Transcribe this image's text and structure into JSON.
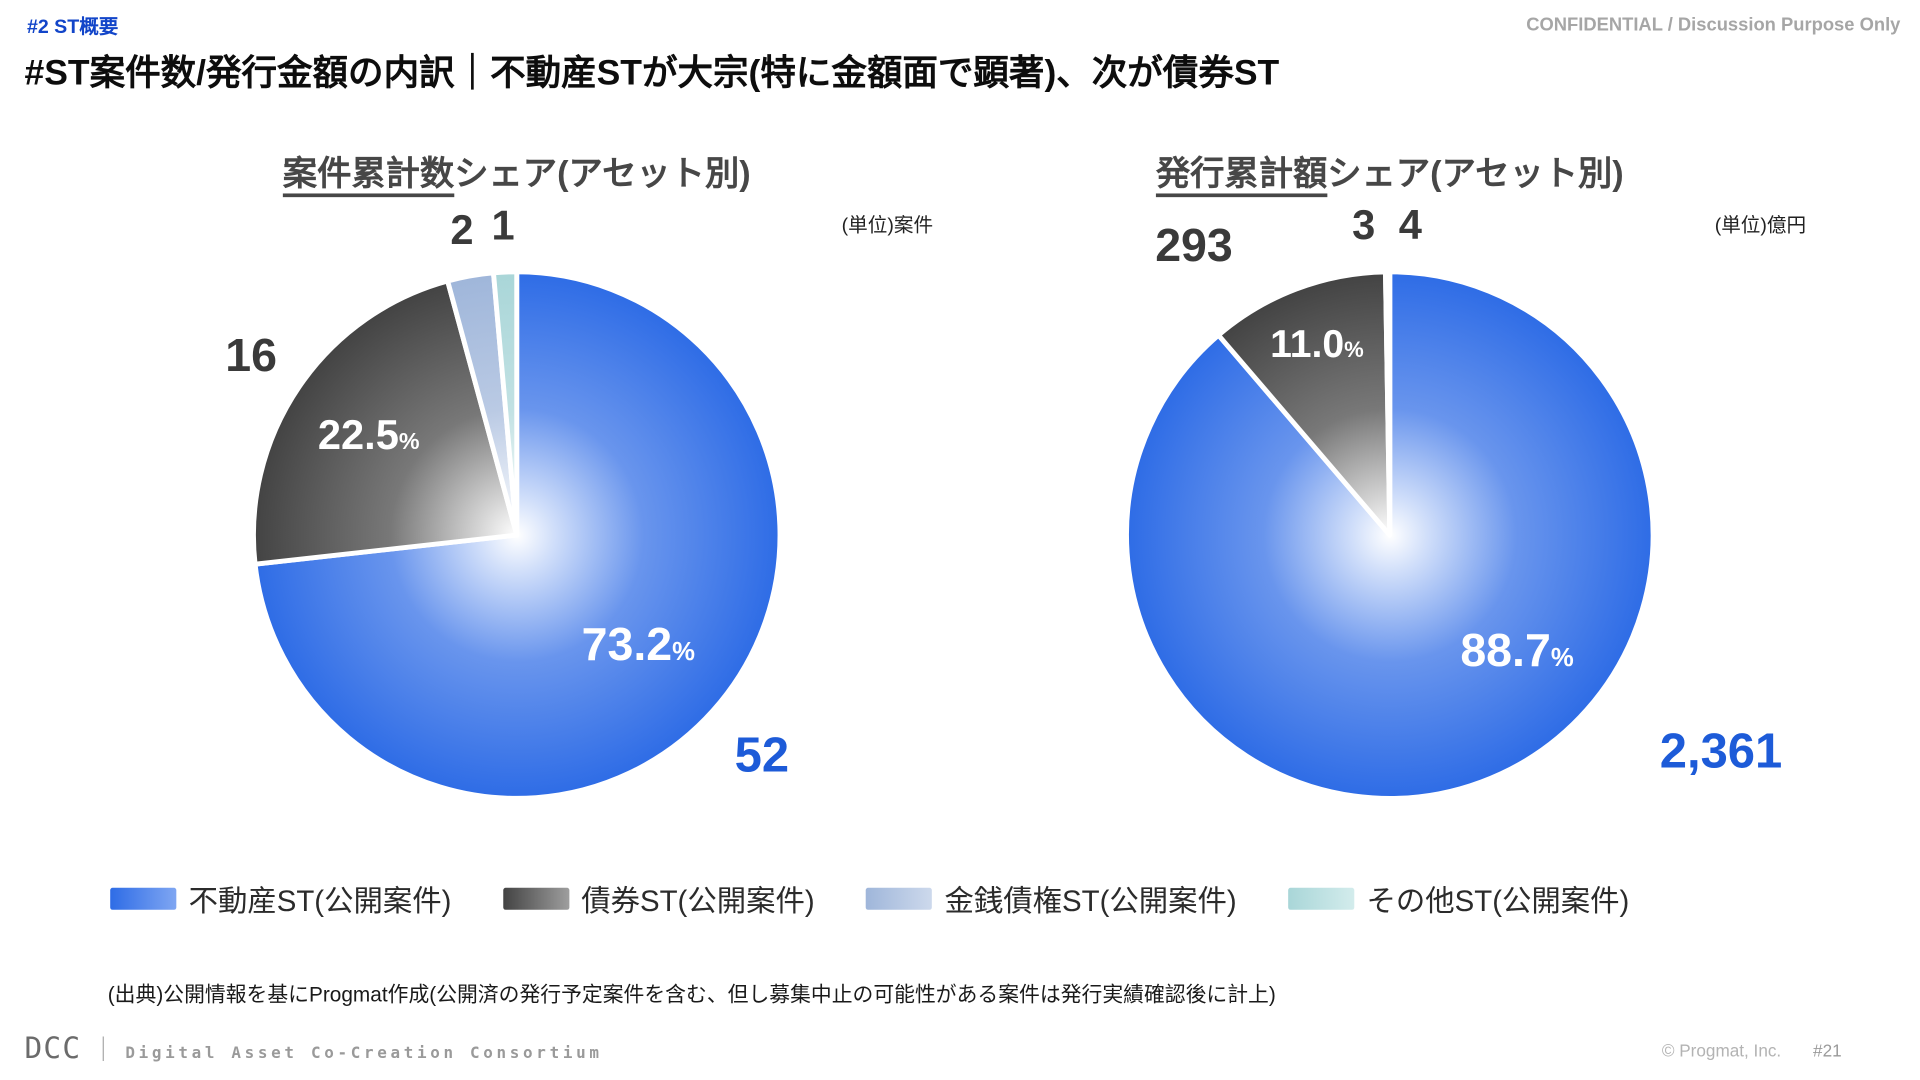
{
  "header": {
    "tag": "#2  ST概要",
    "confidential": "CONFIDENTIAL / Discussion Purpose Only",
    "title": "#ST案件数/発行金額の内訳｜不動産STが大宗(特に金額面で顕著)、次が債券ST"
  },
  "chart_data": [
    {
      "type": "pie",
      "title": "案件累計数シェア(アセット別)",
      "title_underline": "案件累計数",
      "title_rest": "シェア(アセット別)",
      "unit_label": "(単位)案件",
      "categories": [
        "不動産ST(公開案件)",
        "債券ST(公開案件)",
        "金銭債権ST(公開案件)",
        "その他ST(公開案件)"
      ],
      "values": [
        52,
        16,
        2,
        1
      ],
      "value_labels": [
        "52",
        "16",
        "2",
        "1"
      ],
      "pct_labels": [
        "73.2",
        "22.5",
        null,
        null
      ],
      "colors": [
        "#2e6ce6",
        "#434343",
        "#9fb6da",
        "#a9d6d8"
      ],
      "start_angle": -90,
      "clockwise": true,
      "legend_position": "bottom",
      "layout": {
        "slices": [
          {
            "pct_rf": 0.62,
            "pct_size": 38,
            "val_rf": 1.25,
            "val_size": 40,
            "val_color": "#1d5bd8"
          },
          {
            "pct_rf": 0.68,
            "pct_size": 34,
            "val_rf": 1.22,
            "val_size": 38
          },
          {
            "val_rf": 1.18,
            "val_size": 34
          },
          {
            "val_rf": 1.18,
            "val_size": 34
          }
        ]
      }
    },
    {
      "type": "pie",
      "title": "発行累計額シェア(アセット別)",
      "title_underline": "発行累計額",
      "title_rest": "シェア(アセット別)",
      "unit_label": "(単位)億円",
      "categories": [
        "不動産ST(公開案件)",
        "債券ST(公開案件)",
        "金銭債権ST(公開案件)",
        "その他ST(公開案件)"
      ],
      "values": [
        2361,
        293,
        3,
        4
      ],
      "value_labels": [
        "2,361",
        "293",
        "3",
        "4"
      ],
      "pct_labels": [
        "88.7",
        "11.0",
        null,
        null
      ],
      "colors": [
        "#2e6ce6",
        "#434343",
        "#9fb6da",
        "#a9d6d8"
      ],
      "start_angle": -90,
      "clockwise": true,
      "legend_position": "bottom",
      "layout": {
        "slices": [
          {
            "pct_angle": 42,
            "pct_rf": 0.65,
            "pct_size": 38,
            "val_angle": 33,
            "val_rf": 1.5,
            "val_size": 40,
            "val_color": "#1d5bd8"
          },
          {
            "pct_rf": 0.78,
            "pct_size": 32,
            "val_angle": 236,
            "val_rf": 1.33,
            "val_size": 38
          },
          {
            "val_rf": 1.18,
            "val_dx": -18,
            "val_size": 34
          },
          {
            "val_rf": 1.18,
            "val_dx": 18,
            "val_size": 34
          }
        ]
      }
    }
  ],
  "legend": {
    "items": [
      {
        "label": "不動産ST(公開案件)",
        "color": "#2e6ce6",
        "color2": "#7fa6f2"
      },
      {
        "label": "債券ST(公開案件)",
        "color": "#434343",
        "color2": "#9e9e9e"
      },
      {
        "label": "金銭債権ST(公開案件)",
        "color": "#9fb6da",
        "color2": "#cdd9ec"
      },
      {
        "label": "その他ST(公開案件)",
        "color": "#a9d6d8",
        "color2": "#d3ecec"
      }
    ]
  },
  "footnote": "(出典)公開情報を基にProgmat作成(公開済の発行予定案件を含む、但し募集中止の可能性がある案件は発行実績確認後に計上)",
  "footer": {
    "logo": "DCC",
    "divider": "｜",
    "consortium": "Digital Asset Co-Creation Consortium",
    "copyright": "© Progmat, Inc.",
    "page": "#21"
  }
}
